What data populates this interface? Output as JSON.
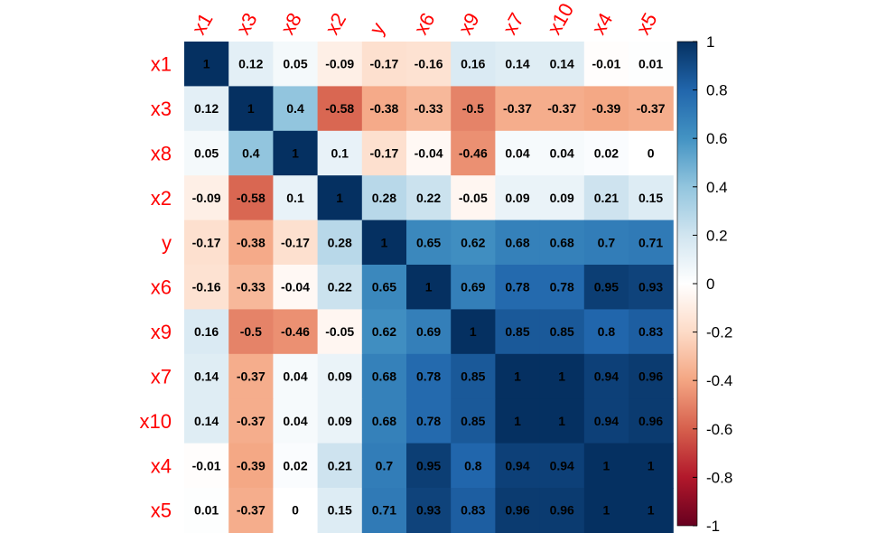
{
  "chart_data": {
    "type": "heatmap",
    "variables": [
      "x1",
      "x3",
      "x8",
      "x2",
      "y",
      "x6",
      "x9",
      "x7",
      "x10",
      "x4",
      "x5"
    ],
    "matrix": [
      [
        1,
        0.12,
        0.05,
        -0.09,
        -0.17,
        -0.16,
        0.16,
        0.14,
        0.14,
        -0.01,
        0.01
      ],
      [
        0.12,
        1,
        0.4,
        -0.58,
        -0.38,
        -0.33,
        -0.5,
        -0.37,
        -0.37,
        -0.39,
        -0.37
      ],
      [
        0.05,
        0.4,
        1,
        0.1,
        -0.17,
        -0.04,
        -0.46,
        0.04,
        0.04,
        0.02,
        0
      ],
      [
        -0.09,
        -0.58,
        0.1,
        1,
        0.28,
        0.22,
        -0.05,
        0.09,
        0.09,
        0.21,
        0.15
      ],
      [
        -0.17,
        -0.38,
        -0.17,
        0.28,
        1,
        0.65,
        0.62,
        0.68,
        0.68,
        0.7,
        0.71
      ],
      [
        -0.16,
        -0.33,
        -0.04,
        0.22,
        0.65,
        1,
        0.69,
        0.78,
        0.78,
        0.95,
        0.93
      ],
      [
        0.16,
        -0.5,
        -0.46,
        -0.05,
        0.62,
        0.69,
        1,
        0.85,
        0.85,
        0.8,
        0.83
      ],
      [
        0.14,
        -0.37,
        0.04,
        0.09,
        0.68,
        0.78,
        0.85,
        1,
        1,
        0.94,
        0.96
      ],
      [
        0.14,
        -0.37,
        0.04,
        0.09,
        0.68,
        0.78,
        0.85,
        1,
        1,
        0.94,
        0.96
      ],
      [
        -0.01,
        -0.39,
        0.02,
        0.21,
        0.7,
        0.95,
        0.8,
        0.94,
        0.94,
        1,
        1
      ],
      [
        0.01,
        -0.37,
        0,
        0.15,
        0.71,
        0.93,
        0.83,
        0.96,
        0.96,
        1,
        1
      ]
    ],
    "color_scale": {
      "range": [
        -1,
        1
      ],
      "colors": [
        "#67001f",
        "#b2182b",
        "#d6604d",
        "#f4a582",
        "#fddbc7",
        "#ffffff",
        "#d1e5f0",
        "#92c5de",
        "#4393c3",
        "#2166ac",
        "#053061"
      ],
      "ticks": [
        1,
        0.8,
        0.6,
        0.4,
        0.2,
        0,
        -0.2,
        -0.4,
        -0.6,
        -0.8,
        -1
      ],
      "tick_labels": [
        "1",
        "0.8",
        "0.6",
        "0.4",
        "0.2",
        "0",
        "-0.2",
        "-0.4",
        "-0.6",
        "-0.8",
        "-1"
      ],
      "legend_position": "right"
    },
    "label_color": "#ff0000",
    "cell_text_color": "#000000",
    "grid": false
  }
}
